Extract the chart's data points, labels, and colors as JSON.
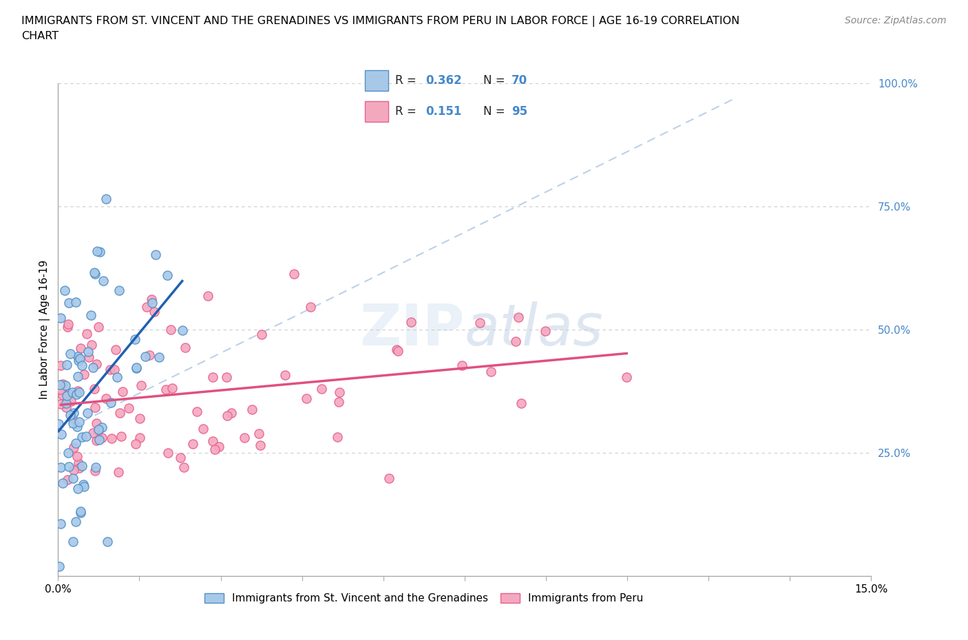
{
  "title_line1": "IMMIGRANTS FROM ST. VINCENT AND THE GRENADINES VS IMMIGRANTS FROM PERU IN LABOR FORCE | AGE 16-19 CORRELATION",
  "title_line2": "CHART",
  "source": "Source: ZipAtlas.com",
  "ylabel": "In Labor Force | Age 16-19",
  "xlim": [
    0.0,
    15.0
  ],
  "ylim": [
    0.0,
    100.0
  ],
  "blue_color": "#a8c8e8",
  "pink_color": "#f4a8be",
  "blue_edge": "#5090c8",
  "pink_edge": "#e86090",
  "blue_line_color": "#2060b0",
  "pink_line_color": "#e05080",
  "dash_line_color": "#b0c8e8",
  "blue_R": 0.362,
  "blue_N": 70,
  "pink_R": 0.151,
  "pink_N": 95,
  "legend_label_blue": "Immigrants from St. Vincent and the Grenadines",
  "legend_label_pink": "Immigrants from Peru",
  "ytick_color": "#4488cc",
  "title_fontsize": 11.5,
  "source_fontsize": 10,
  "tick_fontsize": 11,
  "legend_fontsize": 11
}
